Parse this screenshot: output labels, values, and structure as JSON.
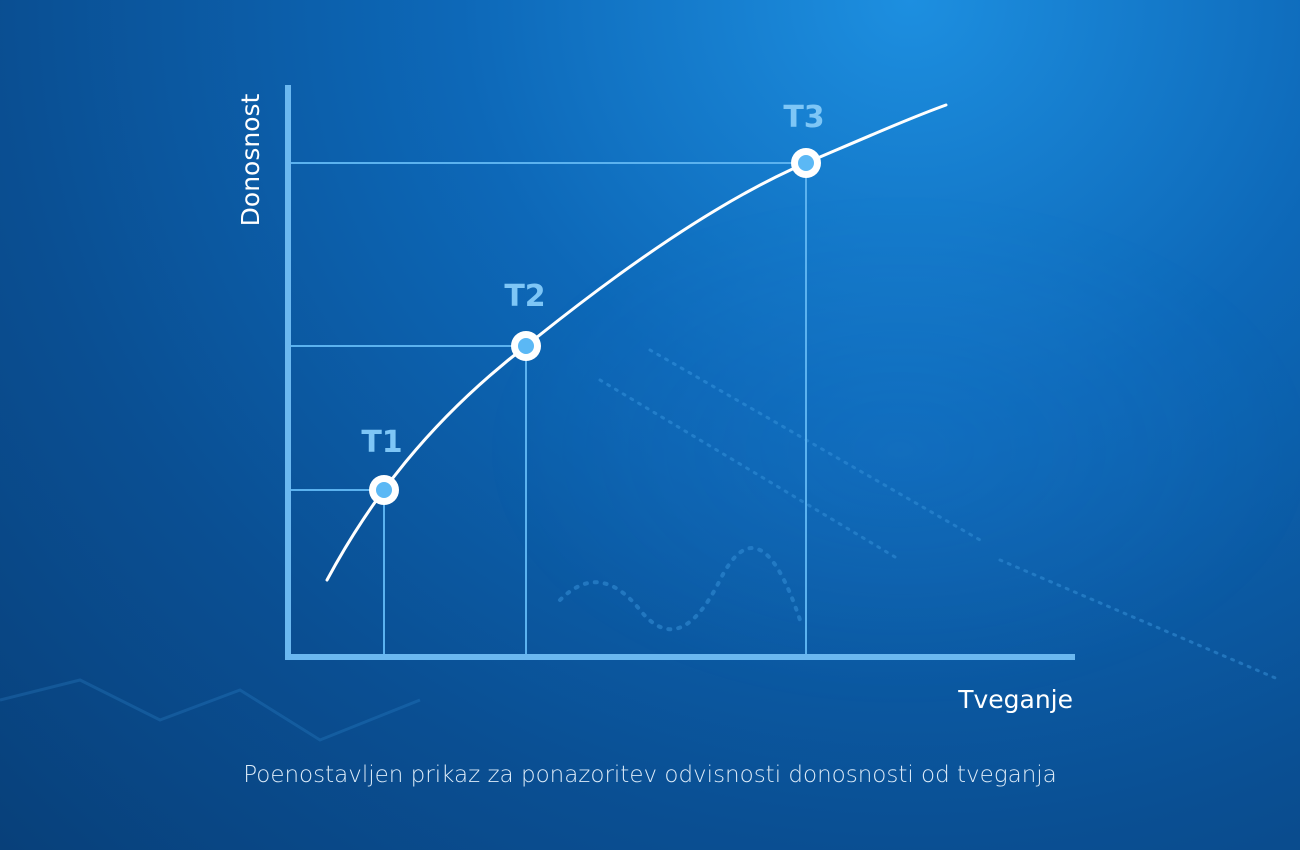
{
  "diagram": {
    "y_axis_label": "Donosnost",
    "x_axis_label": "Tveganje",
    "caption": "Poenostavljen prikaz za ponazoritev odvisnosti donosnosti od tveganja",
    "points": [
      {
        "label": "T1"
      },
      {
        "label": "T2"
      },
      {
        "label": "T3"
      }
    ],
    "colors": {
      "axis": "#6bb8f0",
      "guide_line": "#5bb2ef",
      "curve": "#ffffff",
      "point_fill": "#5bb8f5",
      "point_ring": "#ffffff",
      "label": "#7ec6f6"
    }
  }
}
